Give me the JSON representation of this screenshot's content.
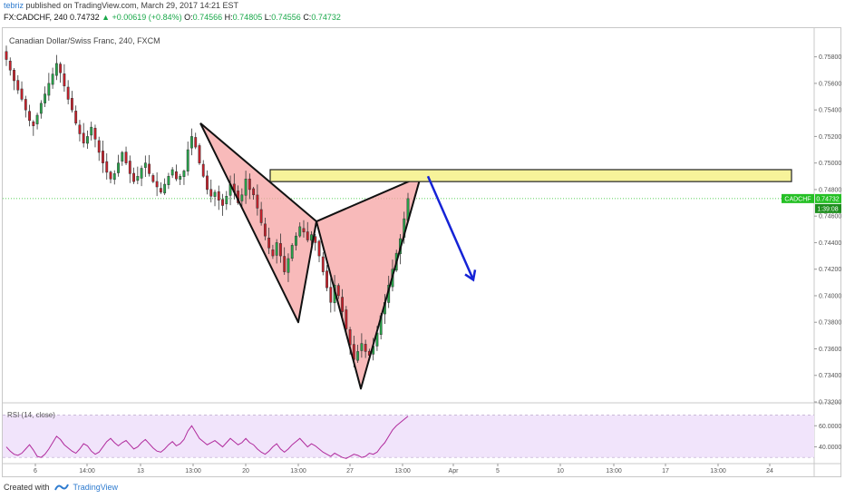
{
  "header": {
    "user": "tebriz",
    "published_text": "published on TradingView.com, March 29, 2017 14:21 EST",
    "symbol": "FX:CADCHF, 240",
    "last": "0.74732",
    "change": "▲ +0.00619 (+0.84%)",
    "o_label": "O:",
    "o": "0.74566",
    "h_label": "H:",
    "h": "0.74805",
    "l_label": "L:",
    "l": "0.74556",
    "c_label": "C:",
    "c": "0.74732"
  },
  "footer": {
    "created_with": "Created with",
    "brand": "TradingView"
  },
  "colors": {
    "up": "#26a64a",
    "down": "#c9202b",
    "pattern_fill": "#f5a3a3",
    "zone_fill": "#f7f39a",
    "arrow": "#1523d6",
    "rsi_line": "#b02a9c",
    "rsi_band": "#f1e4fb",
    "price_tag": "#25c025"
  },
  "chart_data": [
    {
      "type": "candlestick",
      "title": "Canadian Dollar/Swiss Franc, 240, FXCM",
      "y_ticks": [
        "0.75800",
        "0.75600",
        "0.75400",
        "0.75200",
        "0.75000",
        "0.74800",
        "0.74600",
        "0.74400",
        "0.74200",
        "0.74000",
        "0.73800",
        "0.73600",
        "0.73400",
        "0.73200"
      ],
      "ylim": [
        0.732,
        0.759
      ],
      "x_ticks": [
        "6",
        "14:00",
        "13",
        "13:00",
        "20",
        "13:00",
        "27",
        "13:00",
        "Apr",
        "5",
        "10",
        "13:00",
        "17",
        "13:00",
        "24"
      ],
      "close_path": [
        0.7578,
        0.757,
        0.7562,
        0.7555,
        0.7548,
        0.754,
        0.7532,
        0.7528,
        0.7536,
        0.7545,
        0.7552,
        0.756,
        0.7567,
        0.7575,
        0.7568,
        0.7558,
        0.7548,
        0.754,
        0.753,
        0.7522,
        0.7515,
        0.752,
        0.7527,
        0.7518,
        0.7508,
        0.75,
        0.7493,
        0.7488,
        0.7492,
        0.75,
        0.7508,
        0.75,
        0.7492,
        0.7486,
        0.749,
        0.7496,
        0.75,
        0.7492,
        0.7486,
        0.7482,
        0.7478,
        0.7484,
        0.749,
        0.7495,
        0.7488,
        0.749,
        0.7494,
        0.751,
        0.752,
        0.7512,
        0.75,
        0.749,
        0.748,
        0.7475,
        0.7478,
        0.7472,
        0.7468,
        0.7475,
        0.7484,
        0.7478,
        0.747,
        0.7476,
        0.7488,
        0.748,
        0.7476,
        0.7466,
        0.7455,
        0.7445,
        0.7436,
        0.743,
        0.744,
        0.743,
        0.7418,
        0.7428,
        0.7438,
        0.7445,
        0.7452,
        0.7448,
        0.7442,
        0.7446,
        0.744,
        0.743,
        0.7418,
        0.7406,
        0.7395,
        0.7408,
        0.74,
        0.7388,
        0.7375,
        0.7363,
        0.7352,
        0.7358,
        0.7364,
        0.7358,
        0.7355,
        0.7362,
        0.7372,
        0.7385,
        0.7395,
        0.7408,
        0.742,
        0.7432,
        0.7443,
        0.7458,
        0.74732
      ],
      "last_price_tag": "0.74732",
      "symbol_tag": "CADCHF",
      "timer_tag": "1:39:08",
      "annotations": {
        "pattern": "bearish harmonic (XABCD) pattern",
        "resistance_zone": [
          0.7486,
          0.7495
        ],
        "projection": "down arrow"
      }
    },
    {
      "type": "line",
      "title": "RSI (14, close)",
      "y_ticks": [
        "60.0000",
        "40.0000"
      ],
      "ylim": [
        25,
        80
      ],
      "values": [
        40,
        36,
        33,
        32,
        34,
        38,
        42,
        37,
        31,
        30,
        33,
        38,
        44,
        50,
        47,
        42,
        39,
        36,
        34,
        38,
        43,
        41,
        36,
        33,
        35,
        40,
        45,
        48,
        44,
        41,
        44,
        46,
        42,
        38,
        40,
        44,
        47,
        43,
        39,
        36,
        35,
        38,
        42,
        45,
        41,
        43,
        47,
        55,
        60,
        54,
        48,
        45,
        42,
        44,
        46,
        43,
        40,
        44,
        48,
        45,
        42,
        44,
        48,
        44,
        42,
        38,
        35,
        33,
        36,
        40,
        43,
        38,
        35,
        38,
        42,
        45,
        48,
        44,
        40,
        43,
        41,
        38,
        35,
        33,
        31,
        34,
        32,
        30,
        29,
        31,
        33,
        32,
        30,
        31,
        34,
        33,
        35,
        40,
        44,
        50,
        56,
        60,
        63,
        66,
        69
      ]
    }
  ]
}
